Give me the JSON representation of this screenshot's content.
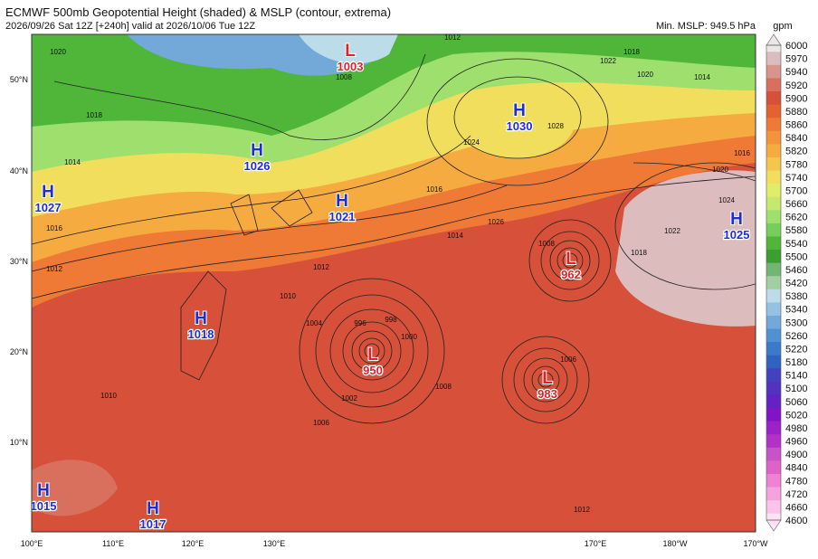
{
  "header": {
    "title": "ECMWF 500mb Geopotential Height (shaded) & MSLP (contour, extrema)",
    "subtitle": "2026/09/26 Sat 12Z [+240h] valid at 2026/10/06 Tue 12Z",
    "min_mslp": "Min. MSLP: 949.5 hPa",
    "unit": "gpm"
  },
  "colorbar": {
    "levels": [
      "6000",
      "5970",
      "5940",
      "5920",
      "5900",
      "5880",
      "5860",
      "5840",
      "5820",
      "5780",
      "5740",
      "5700",
      "5660",
      "5620",
      "5580",
      "5540",
      "5500",
      "5460",
      "5420",
      "5380",
      "5340",
      "5300",
      "5260",
      "5220",
      "5180",
      "5140",
      "5100",
      "5060",
      "5020",
      "4980",
      "4960",
      "4900",
      "4840",
      "4780",
      "4720",
      "4660",
      "4600"
    ],
    "colors": [
      "#ece6e6",
      "#dcbcbc",
      "#d7958b",
      "#d9705e",
      "#d6503a",
      "#e5612f",
      "#ee7a36",
      "#f3933b",
      "#f6ab40",
      "#f4c64c",
      "#f1de5c",
      "#e2ec6b",
      "#c5e96f",
      "#9fdf6e",
      "#76cf5d",
      "#4fb63a",
      "#3b9e31",
      "#71b671",
      "#a2cea2",
      "#bcdcea",
      "#94c2e2",
      "#72a9d8",
      "#5191d0",
      "#3a7ac8",
      "#3062c0",
      "#4242c0",
      "#5432c0",
      "#6422c2",
      "#8214c8",
      "#9a22c8",
      "#b232c8",
      "#c852c8",
      "#df62c9",
      "#ef82d2",
      "#f7a2e0",
      "#fbc2ec",
      "#fde2f5"
    ]
  },
  "lat_labels": [
    "50°N",
    "40°N",
    "30°N",
    "20°N",
    "10°N"
  ],
  "lon_labels": [
    "100°E",
    "110°E",
    "120°E",
    "130°E",
    "170°E",
    "180°W",
    "170°W"
  ],
  "centers": [
    {
      "type": "L",
      "value": "1003"
    },
    {
      "type": "H",
      "value": "1030"
    },
    {
      "type": "H",
      "value": "1026"
    },
    {
      "type": "H",
      "value": "1027"
    },
    {
      "type": "H",
      "value": "1021"
    },
    {
      "type": "H",
      "value": "1025"
    },
    {
      "type": "L",
      "value": "962"
    },
    {
      "type": "H",
      "value": "1018"
    },
    {
      "type": "L",
      "value": "950"
    },
    {
      "type": "L",
      "value": "983"
    },
    {
      "type": "H",
      "value": "1015"
    },
    {
      "type": "H",
      "value": "1017"
    }
  ],
  "isobar_labels": [
    "1020",
    "1018",
    "1016",
    "1012",
    "1016",
    "1014",
    "1012",
    "1028",
    "1024",
    "1026",
    "1016",
    "1014",
    "1012",
    "1010",
    "1004",
    "1002",
    "1006",
    "1008",
    "996",
    "998",
    "1000",
    "1008",
    "1006",
    "1022",
    "1018",
    "1020",
    "1024",
    "1012",
    "1022",
    "1018",
    "1020",
    "1010",
    "1014",
    "1008"
  ]
}
